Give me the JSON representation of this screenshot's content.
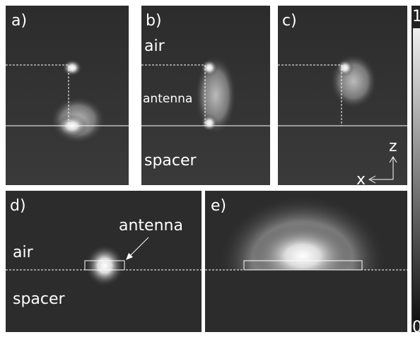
{
  "panels": [
    {
      "label": "a)"
    },
    {
      "label": "b)",
      "annotations": [
        "air",
        "antenna",
        "spacer"
      ]
    },
    {
      "label": "c)",
      "axes": [
        "z",
        "x"
      ]
    },
    {
      "label": "d)",
      "annotations": [
        "antenna",
        "air",
        "spacer"
      ]
    },
    {
      "label": "e)"
    }
  ],
  "colorbar": {
    "max": "1",
    "min": "0"
  }
}
